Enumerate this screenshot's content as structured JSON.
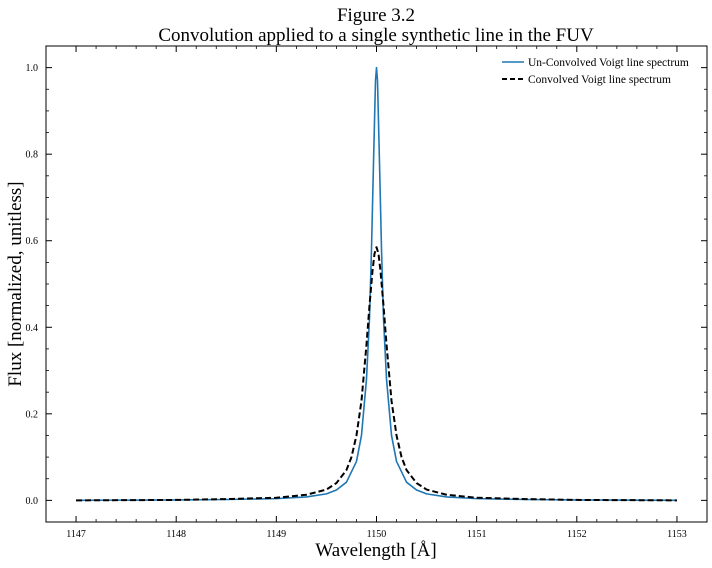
{
  "chart_data": {
    "type": "line",
    "title_line1": "Figure 3.2",
    "title_line2": "Convolution applied to a single synthetic line in the FUV",
    "xlabel": "Wavelength [Å]",
    "ylabel": "Flux [normalized, unitless]",
    "xlim": [
      1146.7,
      1153.3
    ],
    "ylim": [
      -0.05,
      1.05
    ],
    "x_ticks": [
      1147,
      1148,
      1149,
      1150,
      1151,
      1152,
      1153
    ],
    "x_tick_labels": [
      "1147",
      "1148",
      "1149",
      "1150",
      "1151",
      "1152",
      "1153"
    ],
    "y_ticks": [
      0.0,
      0.2,
      0.4,
      0.6,
      0.8,
      1.0
    ],
    "y_tick_labels": [
      "0.0",
      "0.2",
      "0.4",
      "0.6",
      "0.8",
      "1.0"
    ],
    "grid": false,
    "legend_position": "top-right",
    "series": [
      {
        "name": "Un-Convolved Voigt line spectrum",
        "color": "#1f77b4",
        "style": "solid",
        "x": [
          1147.0,
          1148.0,
          1148.5,
          1149.0,
          1149.3,
          1149.5,
          1149.6,
          1149.7,
          1149.8,
          1149.85,
          1149.9,
          1149.93,
          1149.95,
          1149.97,
          1149.99,
          1150.0,
          1150.01,
          1150.03,
          1150.05,
          1150.07,
          1150.1,
          1150.15,
          1150.2,
          1150.3,
          1150.4,
          1150.5,
          1150.7,
          1151.0,
          1151.5,
          1152.0,
          1153.0
        ],
        "y": [
          0.0,
          0.001,
          0.002,
          0.004,
          0.008,
          0.015,
          0.024,
          0.042,
          0.09,
          0.15,
          0.28,
          0.42,
          0.58,
          0.78,
          0.97,
          1.0,
          0.97,
          0.78,
          0.58,
          0.42,
          0.28,
          0.15,
          0.09,
          0.042,
          0.024,
          0.015,
          0.008,
          0.004,
          0.002,
          0.001,
          0.0
        ]
      },
      {
        "name": "Convolved Voigt line spectrum",
        "color": "#000000",
        "style": "dashed",
        "x": [
          1147.0,
          1148.0,
          1148.5,
          1149.0,
          1149.3,
          1149.5,
          1149.6,
          1149.7,
          1149.75,
          1149.8,
          1149.85,
          1149.9,
          1149.93,
          1149.96,
          1149.98,
          1150.0,
          1150.02,
          1150.04,
          1150.07,
          1150.1,
          1150.15,
          1150.2,
          1150.25,
          1150.3,
          1150.4,
          1150.5,
          1150.7,
          1151.0,
          1151.5,
          1152.0,
          1153.0
        ],
        "y": [
          0.0,
          0.001,
          0.003,
          0.006,
          0.013,
          0.025,
          0.04,
          0.07,
          0.1,
          0.15,
          0.23,
          0.36,
          0.45,
          0.53,
          0.57,
          0.585,
          0.57,
          0.53,
          0.45,
          0.36,
          0.23,
          0.15,
          0.1,
          0.07,
          0.04,
          0.025,
          0.013,
          0.006,
          0.003,
          0.001,
          0.0
        ]
      }
    ]
  }
}
